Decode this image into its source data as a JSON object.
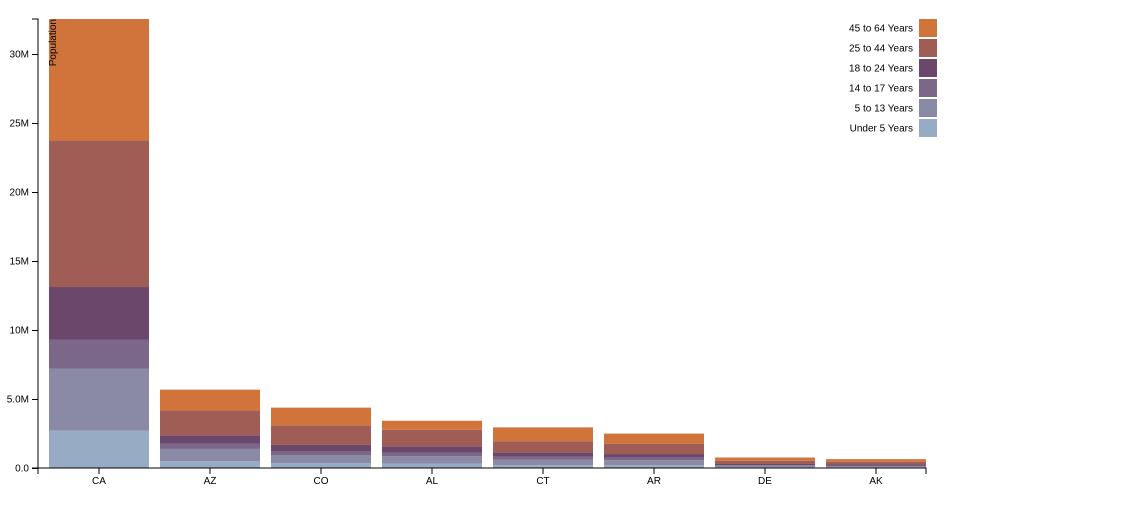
{
  "chart_data": {
    "type": "bar",
    "stacked": true,
    "title": "",
    "xlabel": "",
    "ylabel": "Population",
    "ylim": [
      0,
      32500000
    ],
    "yticks": [
      {
        "value": 0,
        "label": "0.0"
      },
      {
        "value": 5000000,
        "label": "5.0M"
      },
      {
        "value": 10000000,
        "label": "10M"
      },
      {
        "value": 15000000,
        "label": "15M"
      },
      {
        "value": 20000000,
        "label": "20M"
      },
      {
        "value": 25000000,
        "label": "25M"
      },
      {
        "value": 30000000,
        "label": "30M"
      }
    ],
    "categories": [
      "CA",
      "AZ",
      "CO",
      "AL",
      "CT",
      "AR",
      "DE",
      "AK"
    ],
    "series": [
      {
        "name": "Under 5 Years",
        "color": "#98abc5",
        "values": [
          2700000,
          500000,
          350000,
          310000,
          210000,
          200000,
          60000,
          50000
        ]
      },
      {
        "name": "5 to 13 Years",
        "color": "#8a89a6",
        "values": [
          4500000,
          880000,
          590000,
          550000,
          400000,
          370000,
          100000,
          90000
        ]
      },
      {
        "name": "14 to 17 Years",
        "color": "#7b6888",
        "values": [
          2100000,
          390000,
          260000,
          260000,
          200000,
          170000,
          50000,
          40000
        ]
      },
      {
        "name": "18 to 24 Years",
        "color": "#6b486b",
        "values": [
          3800000,
          600000,
          470000,
          450000,
          330000,
          270000,
          80000,
          70000
        ]
      },
      {
        "name": "25 to 44 Years",
        "color": "#a05d56",
        "values": [
          10600000,
          1800000,
          1400000,
          1200000,
          800000,
          750000,
          230000,
          200000
        ]
      },
      {
        "name": "45 to 64 Years",
        "color": "#d0743c",
        "values": [
          8800000,
          1500000,
          1300000,
          650000,
          1000000,
          730000,
          240000,
          190000
        ]
      }
    ],
    "legend_position": "top-right",
    "grid": false
  }
}
